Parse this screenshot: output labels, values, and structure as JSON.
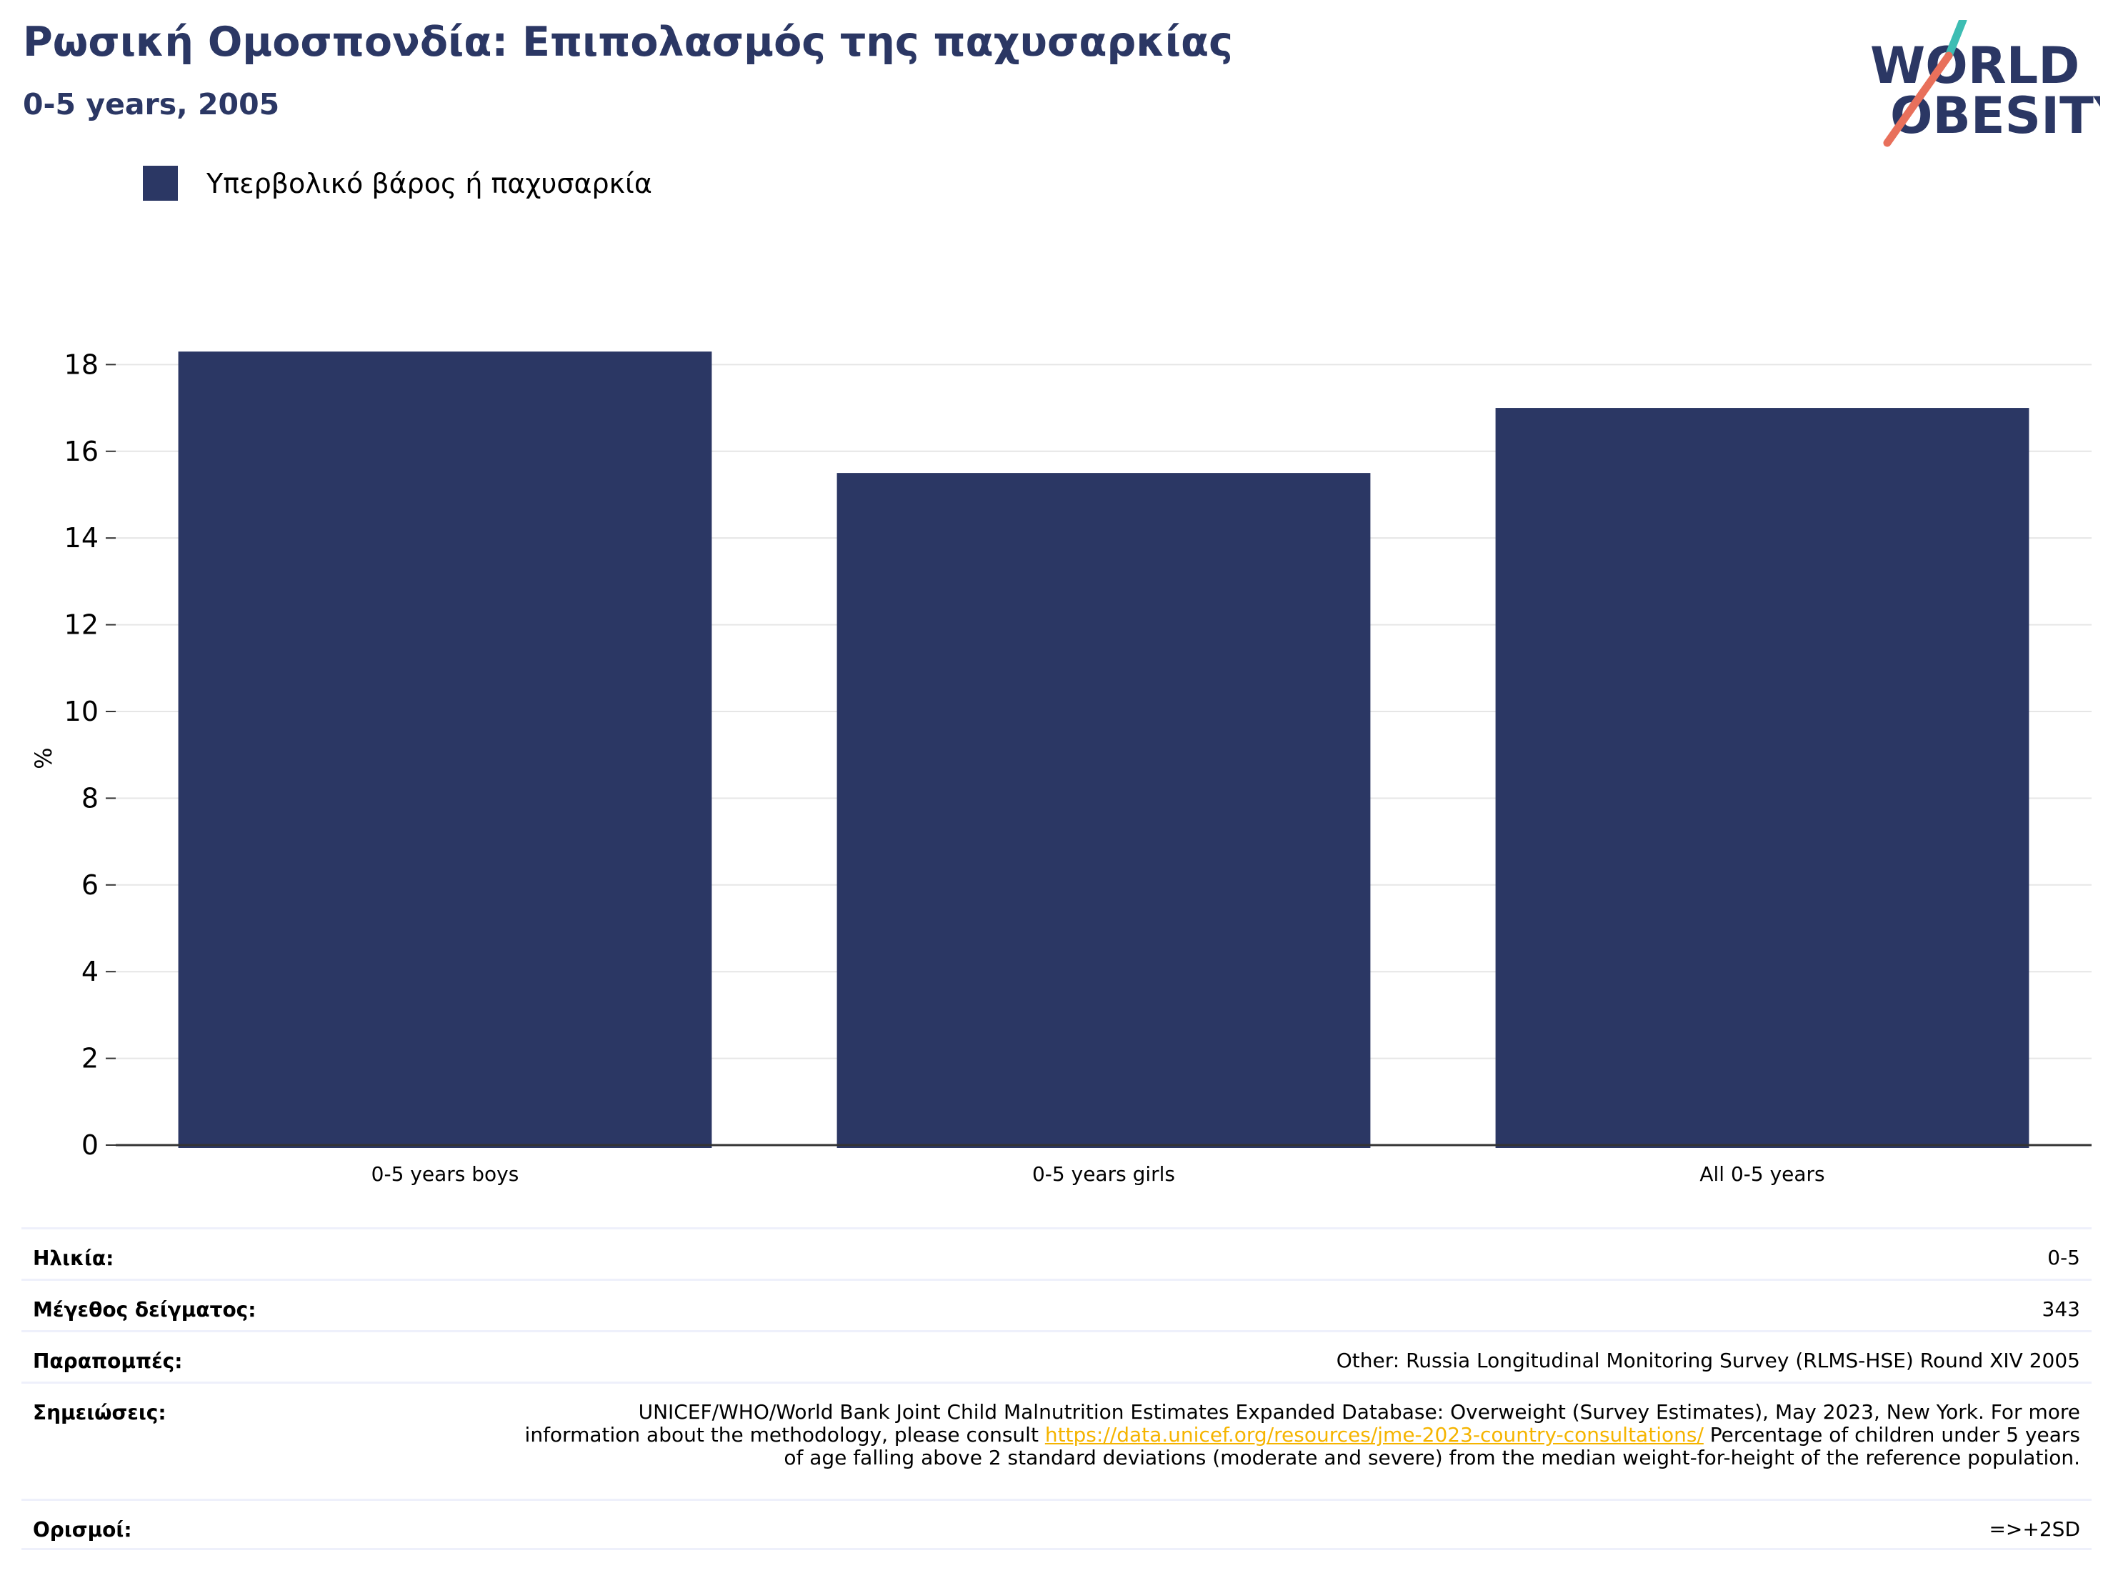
{
  "header": {
    "title": "Ρωσική Ομοσπονδία: Επιπολασμός της παχυσαρκίας",
    "subtitle": "0-5 years, 2005"
  },
  "logo": {
    "line1": "WORLD",
    "line2": "OBESITY"
  },
  "colors": {
    "bar": "#2b3764",
    "title": "#2b3764",
    "grid": "#e6e6e6",
    "link": "#f5b400"
  },
  "chart_data": {
    "type": "bar",
    "categories": [
      "0-5 years boys",
      "0-5 years girls",
      "All 0-5 years"
    ],
    "series": [
      {
        "name": "Υπερβολικό βάρος ή παχυσαρκία",
        "values": [
          18.3,
          15.5,
          17.0
        ]
      }
    ],
    "ylabel": "%",
    "ylim": [
      0,
      18.5
    ],
    "yticks": [
      0,
      2,
      4,
      6,
      8,
      10,
      12,
      14,
      16,
      18
    ],
    "grid": true,
    "legend_position": "top-left"
  },
  "info": {
    "age_label": "Ηλικία:",
    "age_value": "0-5",
    "sample_label": "Μέγεθος δείγματος:",
    "sample_value": "343",
    "refs_label": "Παραπομπές:",
    "refs_value": "Other: Russia Longitudinal Monitoring Survey (RLMS-HSE) Round XIV 2005",
    "notes_label": "Σημειώσεις:",
    "notes_text_1": "UNICEF/WHO/World Bank Joint Child Malnutrition Estimates Expanded Database: Overweight (Survey Estimates), May 2023, New York. For more information about the methodology, please consult",
    "notes_link": "https://data.unicef.org/resources/jme-2023-country-consultations/",
    "notes_text_2": "Percentage of children under 5 years of age falling above 2 standard deviations (moderate and severe) from the median weight-for-height of the reference population.",
    "defs_label": "Ορισμοί:",
    "defs_value": "=>+2SD"
  }
}
